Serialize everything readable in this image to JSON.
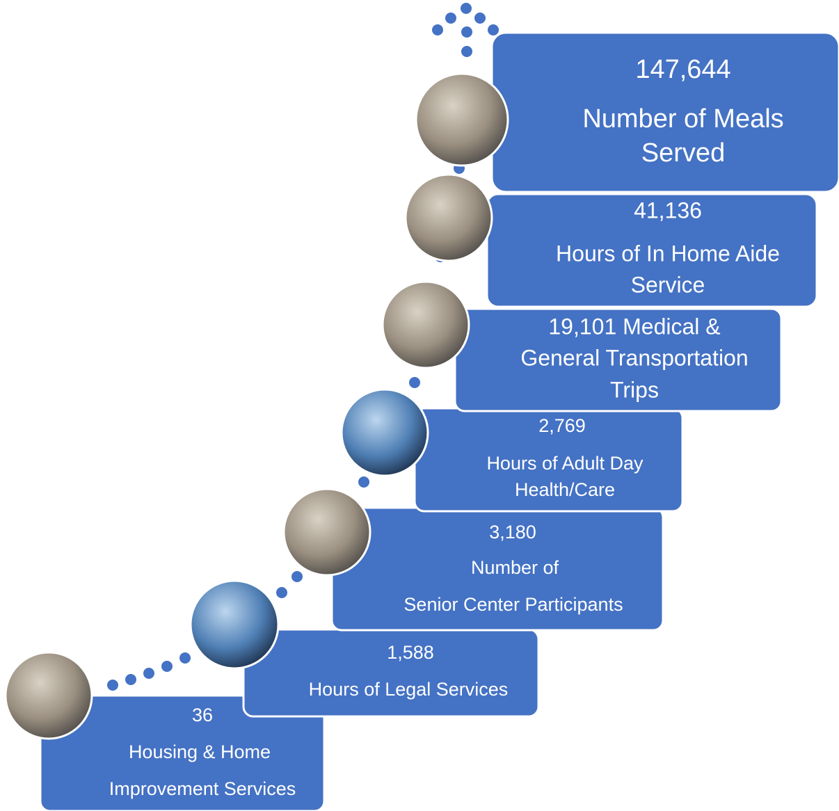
{
  "steps": [
    {
      "lines": [
        "36",
        "Housing & Home",
        "Improvement Services"
      ]
    },
    {
      "lines": [
        "1,588",
        "Hours of Legal Services"
      ]
    },
    {
      "lines": [
        "3,180",
        "Number of",
        "Senior Center Participants"
      ]
    },
    {
      "lines": [
        "2,769",
        "Hours of Adult Day",
        "Health/Care"
      ]
    },
    {
      "lines": [
        "19,101 Medical &",
        "General Transportation",
        "Trips"
      ]
    },
    {
      "lines": [
        "41,136",
        "Hours of In Home Aide",
        "Service"
      ]
    },
    {
      "lines": [
        "147,644",
        "Number of Meals",
        "Served"
      ]
    }
  ]
}
